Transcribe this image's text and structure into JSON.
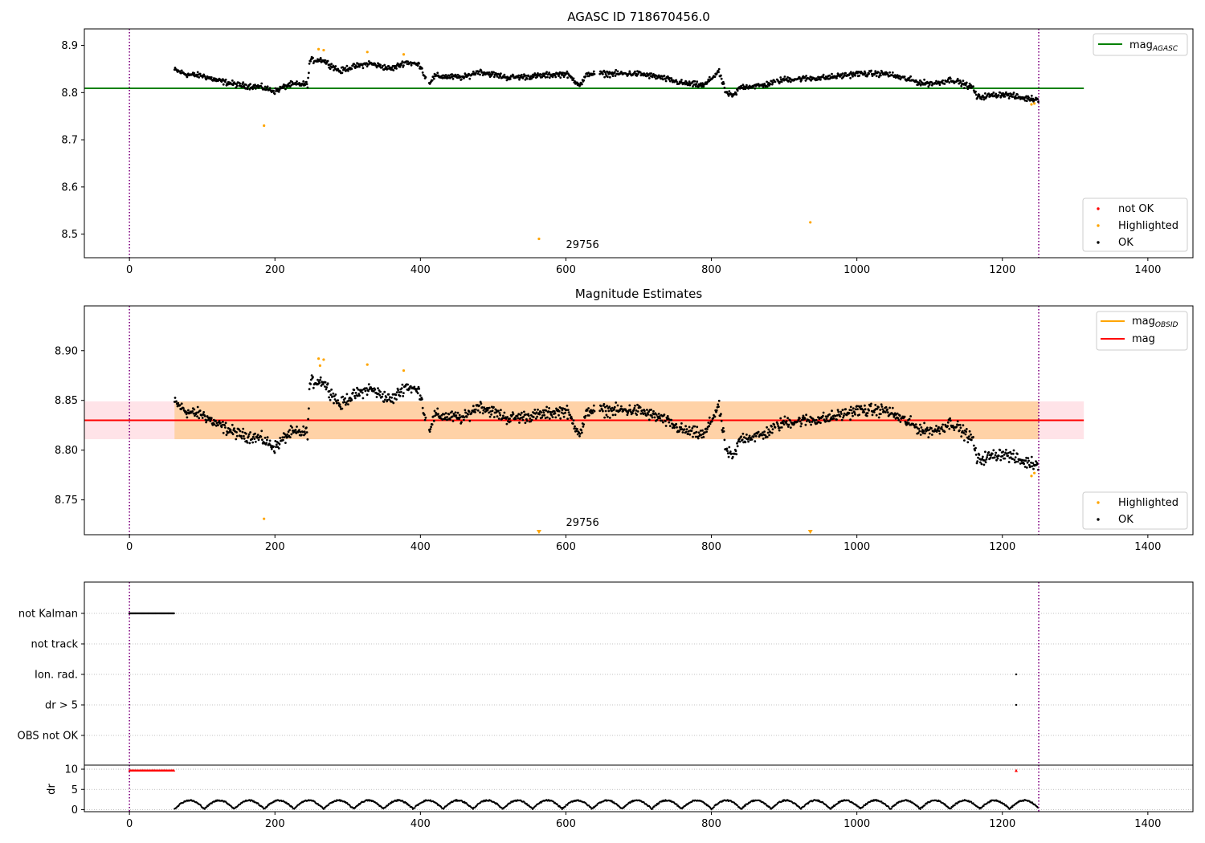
{
  "chart_data": [
    {
      "type": "scatter",
      "title": "AGASC ID 718670456.0",
      "xlim": [
        -62,
        1462
      ],
      "ylim": [
        8.45,
        8.935
      ],
      "x_ticks": [
        0,
        200,
        400,
        600,
        800,
        1000,
        1200,
        1400
      ],
      "y_ticks": [
        8.5,
        8.6,
        8.7,
        8.8,
        8.9
      ],
      "y_tick_labels": [
        "8.5",
        "8.6",
        "8.7",
        "8.8",
        "8.9"
      ],
      "vlines": [
        0,
        1250
      ],
      "annotation": {
        "text": "29756",
        "x": 600,
        "y": 8.47
      },
      "line": {
        "label": "mag",
        "label_sub": "AGASC",
        "y": 8.809,
        "x_range": [
          -62,
          1312
        ],
        "color": "#008000"
      },
      "series": [
        {
          "name": "not OK",
          "color": "#ff0000",
          "points": []
        },
        {
          "name": "Highlighted",
          "color": "#ffa500",
          "points": [
            [
              185,
              8.73
            ],
            [
              260,
              8.892
            ],
            [
              267,
              8.89
            ],
            [
              327,
              8.886
            ],
            [
              377,
              8.881
            ],
            [
              563,
              8.49
            ],
            [
              936,
              8.525
            ],
            [
              1240,
              8.775
            ],
            [
              1244,
              8.777
            ]
          ]
        },
        {
          "name": "OK",
          "color": "#000000",
          "points": []
        }
      ],
      "legend_upper": {
        "placement": "upper right"
      },
      "legend_lower": {
        "placement": "lower right"
      }
    },
    {
      "type": "scatter",
      "title": "Magnitude Estimates",
      "xlim": [
        -62,
        1462
      ],
      "ylim": [
        8.715,
        8.945
      ],
      "x_ticks": [
        0,
        200,
        400,
        600,
        800,
        1000,
        1200,
        1400
      ],
      "y_ticks": [
        8.75,
        8.8,
        8.85,
        8.9
      ],
      "y_tick_labels": [
        "8.75",
        "8.80",
        "8.85",
        "8.90"
      ],
      "vlines": [
        0,
        1250
      ],
      "annotation": {
        "text": "29756",
        "x": 600,
        "y": 8.72
      },
      "band_outer": {
        "y": [
          8.811,
          8.849
        ],
        "x_range": [
          -62,
          1312
        ],
        "color": "#ffc0cb"
      },
      "band_inner": {
        "y": [
          8.811,
          8.849
        ],
        "x_range": [
          62,
          1250
        ],
        "color": "#ffa500"
      },
      "lines": [
        {
          "label": "mag",
          "label_sub": "OBSID",
          "y": 8.83,
          "x_range": [
            62,
            1250
          ],
          "color": "#ffa500"
        },
        {
          "label": "mag",
          "label_sub": "",
          "y": 8.83,
          "x_range": [
            -62,
            1312
          ],
          "color": "#ff0000"
        }
      ],
      "offscale_markers": [
        563,
        936
      ],
      "series": [
        {
          "name": "Highlighted",
          "color": "#ffa500",
          "points": [
            [
              185,
              8.731
            ],
            [
              260,
              8.892
            ],
            [
              262,
              8.885
            ],
            [
              267,
              8.891
            ],
            [
              327,
              8.886
            ],
            [
              377,
              8.88
            ],
            [
              1240,
              8.774
            ],
            [
              1244,
              8.777
            ]
          ]
        },
        {
          "name": "OK",
          "color": "#000000",
          "points": []
        }
      ],
      "legend_upper": {
        "placement": "upper right"
      },
      "legend_lower": {
        "placement": "lower right"
      }
    },
    {
      "type": "scatter",
      "title": "",
      "xlim": [
        -62,
        1462
      ],
      "categories": [
        "not Kalman",
        "not track",
        "Ion. rad.",
        "dr > 5",
        "OBS not OK"
      ],
      "flag_ranges": [
        {
          "category": "not Kalman",
          "x_range": [
            0,
            62
          ]
        },
        {
          "category": "Ion. rad.",
          "x_points": [
            1219
          ]
        },
        {
          "category": "dr > 5",
          "x_points": [
            1219
          ]
        }
      ],
      "vlines": [
        0,
        1250
      ]
    },
    {
      "type": "scatter",
      "title": "",
      "ylabel": "dr",
      "xlim": [
        -62,
        1462
      ],
      "ylim": [
        -0.5,
        11
      ],
      "x_ticks": [
        0,
        200,
        400,
        600,
        800,
        1000,
        1200,
        1400
      ],
      "y_ticks": [
        0,
        5,
        10
      ],
      "y_tick_labels": [
        "0",
        "5",
        "10"
      ],
      "vlines": [
        0,
        1250
      ],
      "capped": {
        "y": 9.7,
        "x_range": [
          0,
          62
        ],
        "x_points": [
          1219
        ],
        "color": "#ff0000"
      },
      "dr_wave": {
        "x_range": [
          62,
          1250
        ],
        "min": 0.2,
        "max": 2.3
      }
    }
  ]
}
